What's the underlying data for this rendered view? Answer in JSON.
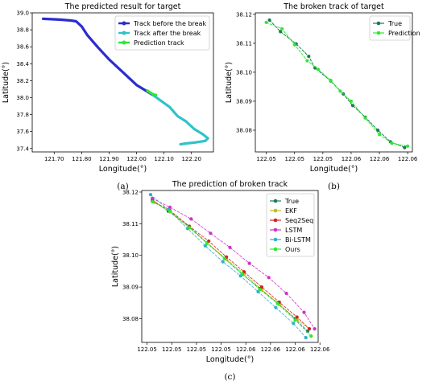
{
  "chart_data": [
    {
      "type": "line",
      "title": "The predicted result for target",
      "xlabel": "Longitude(°)",
      "ylabel": "Latitude(°)",
      "caption": "(a)",
      "xlim": [
        121.62,
        122.28
      ],
      "ylim": [
        37.36,
        39.0
      ],
      "xticks": [
        121.7,
        121.8,
        121.9,
        122.0,
        122.1,
        122.2
      ],
      "xtick_labels": [
        "121.70",
        "121.80",
        "121.90",
        "122.00",
        "122.10",
        "122.20"
      ],
      "yticks": [
        37.4,
        37.6,
        37.8,
        38.0,
        38.2,
        38.4,
        38.6,
        38.8,
        39.0
      ],
      "ytick_labels": [
        "37.4",
        "37.6",
        "37.8",
        "38.0",
        "38.2",
        "38.4",
        "38.6",
        "38.8",
        "39.0"
      ],
      "grid": false,
      "legend_position": "top-right",
      "series": [
        {
          "name": "Track before the break",
          "color": "#2b2bd0",
          "x": [
            121.66,
            121.72,
            121.76,
            121.78,
            121.8,
            121.82,
            121.86,
            121.9,
            121.95,
            122.0,
            122.06
          ],
          "y": [
            38.93,
            38.92,
            38.91,
            38.9,
            38.84,
            38.74,
            38.59,
            38.45,
            38.3,
            38.15,
            38.03
          ]
        },
        {
          "name": "Track after the break",
          "color": "#2fc3c8",
          "x": [
            122.06,
            122.12,
            122.15,
            122.18,
            122.21,
            122.24,
            122.26,
            122.25,
            122.21,
            122.18,
            122.16
          ],
          "y": [
            38.03,
            37.89,
            37.78,
            37.72,
            37.63,
            37.57,
            37.52,
            37.49,
            37.47,
            37.46,
            37.45
          ]
        },
        {
          "name": "Prediction track",
          "color": "#2ee82e",
          "x": [
            122.04,
            122.05,
            122.06,
            122.07
          ],
          "y": [
            38.08,
            38.06,
            38.04,
            38.03
          ]
        }
      ]
    },
    {
      "type": "line",
      "title": "The broken track of target",
      "xlabel": "Longitude(°)",
      "ylabel": "Latitude(°)",
      "caption": "(b)",
      "xlim": [
        0,
        1
      ],
      "ylim": [
        38.0725,
        38.1205
      ],
      "xticks": [
        0.07,
        0.25,
        0.43,
        0.61,
        0.79,
        0.97
      ],
      "xtick_labels": [
        "122.05",
        "122.05",
        "122.05",
        "122.06",
        "122.06",
        "122.06"
      ],
      "yticks": [
        38.08,
        38.09,
        38.1,
        38.11,
        38.12
      ],
      "ytick_labels": [
        "38.08",
        "38.09",
        "38.10",
        "38.11",
        "38.12"
      ],
      "grid": false,
      "legend_position": "top-right",
      "series": [
        {
          "name": "True",
          "color": "#1a7a5a",
          "marker": "o",
          "x": [
            0.09,
            0.16,
            0.26,
            0.34,
            0.38,
            0.48,
            0.56,
            0.62,
            0.7,
            0.78,
            0.86,
            0.95
          ],
          "y": [
            38.118,
            38.114,
            38.1098,
            38.1055,
            38.1015,
            38.097,
            38.0925,
            38.0885,
            38.0845,
            38.08,
            38.076,
            38.074
          ]
        },
        {
          "name": "Prediction",
          "color": "#2ee82e",
          "marker": "o",
          "x": [
            0.07,
            0.17,
            0.25,
            0.33,
            0.4,
            0.48,
            0.54,
            0.61,
            0.7,
            0.79,
            0.87,
            0.97
          ],
          "y": [
            38.1172,
            38.115,
            38.1095,
            38.104,
            38.101,
            38.0972,
            38.0935,
            38.09,
            38.0842,
            38.0785,
            38.0755,
            38.0745
          ]
        }
      ]
    },
    {
      "type": "line",
      "title": "The prediction of broken track",
      "xlabel": "Longitude(°)",
      "ylabel": "Latitude(°)",
      "caption": "(c)",
      "xlim": [
        0,
        1
      ],
      "ylim": [
        38.0725,
        38.1205
      ],
      "xticks": [
        0.03,
        0.17,
        0.31,
        0.45,
        0.59,
        0.73,
        0.87,
        1.01
      ],
      "xtick_labels": [
        "122.05",
        "122.05",
        "122.05",
        "122.05",
        "122.06",
        "122.06",
        "122.06",
        "122.06"
      ],
      "yticks": [
        38.08,
        38.09,
        38.1,
        38.11,
        38.12
      ],
      "ytick_labels": [
        "38.08",
        "38.09",
        "38.10",
        "38.11",
        "38.12"
      ],
      "grid": false,
      "legend_position": "top-right",
      "series": [
        {
          "name": "True",
          "color": "#1a7a5a",
          "x": [
            0.06,
            0.15,
            0.27,
            0.37,
            0.47,
            0.57,
            0.67,
            0.77,
            0.87,
            0.94
          ],
          "y": [
            38.1175,
            38.114,
            38.109,
            38.104,
            38.099,
            38.094,
            38.0895,
            38.085,
            38.08,
            38.076
          ]
        },
        {
          "name": "EKF",
          "color": "#bdbd1a",
          "x": [
            0.07,
            0.16,
            0.27,
            0.37,
            0.48,
            0.58,
            0.68,
            0.78,
            0.88,
            0.95
          ],
          "y": [
            38.1168,
            38.1138,
            38.1088,
            38.104,
            38.0988,
            38.0942,
            38.0892,
            38.0845,
            38.0798,
            38.0768
          ]
        },
        {
          "name": "Seq2Seq",
          "color": "#d42020",
          "x": [
            0.06,
            0.16,
            0.27,
            0.38,
            0.48,
            0.58,
            0.68,
            0.78,
            0.88,
            0.95
          ],
          "y": [
            38.1172,
            38.1142,
            38.1092,
            38.1045,
            38.0995,
            38.0948,
            38.09,
            38.0852,
            38.0805,
            38.0768
          ]
        },
        {
          "name": "LSTM",
          "color": "#d030c8",
          "x": [
            0.06,
            0.16,
            0.28,
            0.39,
            0.5,
            0.61,
            0.72,
            0.82,
            0.92,
            0.98
          ],
          "y": [
            38.118,
            38.1152,
            38.1115,
            38.107,
            38.1025,
            38.0975,
            38.093,
            38.088,
            38.082,
            38.0768
          ]
        },
        {
          "name": "Bi-LSTM",
          "color": "#30b0c8",
          "x": [
            0.05,
            0.15,
            0.26,
            0.36,
            0.46,
            0.56,
            0.66,
            0.76,
            0.86,
            0.93
          ],
          "y": [
            38.1192,
            38.1145,
            38.1085,
            38.103,
            38.098,
            38.0935,
            38.0885,
            38.0835,
            38.0785,
            38.074
          ]
        },
        {
          "name": "Ours",
          "color": "#2ee82e",
          "x": [
            0.06,
            0.16,
            0.27,
            0.37,
            0.47,
            0.57,
            0.67,
            0.77,
            0.87,
            0.96
          ],
          "y": [
            38.117,
            38.114,
            38.1088,
            38.1038,
            38.099,
            38.0942,
            38.0892,
            38.0848,
            38.0795,
            38.0745
          ]
        }
      ]
    }
  ]
}
